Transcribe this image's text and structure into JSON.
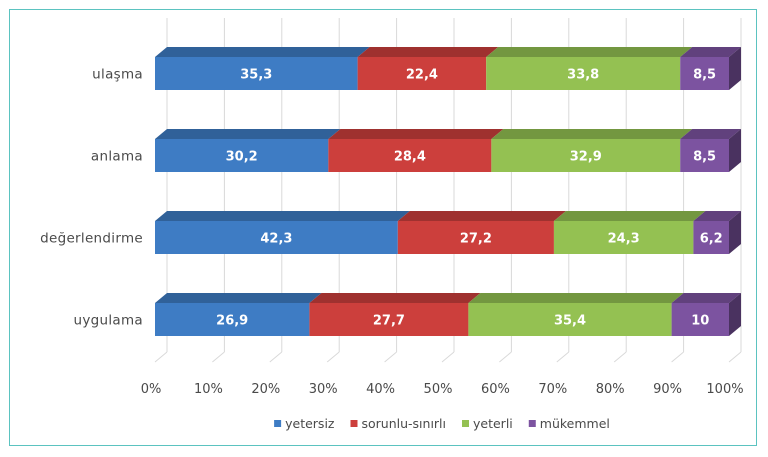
{
  "chart_data": {
    "type": "bar",
    "orientation": "horizontal",
    "stacked": true,
    "percent": true,
    "categories": [
      "ulaşma",
      "anlama",
      "değerlendirme",
      "uygulama"
    ],
    "series": [
      {
        "name": "yetersiz",
        "color": "#3e7cc4",
        "values": [
          35.3,
          30.2,
          42.3,
          26.9
        ]
      },
      {
        "name": "sorunlu-sınırlı",
        "color": "#cc3f3c",
        "values": [
          22.4,
          28.4,
          27.2,
          27.7
        ]
      },
      {
        "name": "yeterli",
        "color": "#94c152",
        "values": [
          33.8,
          32.9,
          24.3,
          35.4
        ]
      },
      {
        "name": "mükemmel",
        "color": "#7c53a0",
        "values": [
          8.5,
          8.5,
          6.2,
          10
        ]
      }
    ],
    "value_labels": [
      [
        "35,3",
        "30,2",
        "42,3",
        "26,9"
      ],
      [
        "22,4",
        "28,4",
        "27,2",
        "27,7"
      ],
      [
        "33,8",
        "32,9",
        "24,3",
        "35,4"
      ],
      [
        "8,5",
        "8,5",
        "6,2",
        "10"
      ]
    ],
    "xticks": [
      "0%",
      "10%",
      "20%",
      "30%",
      "40%",
      "50%",
      "60%",
      "70%",
      "80%",
      "90%",
      "100%"
    ],
    "xlim": [
      0,
      100
    ],
    "grid": true,
    "legend": "bottom",
    "title": "",
    "xlabel": "",
    "ylabel": ""
  }
}
